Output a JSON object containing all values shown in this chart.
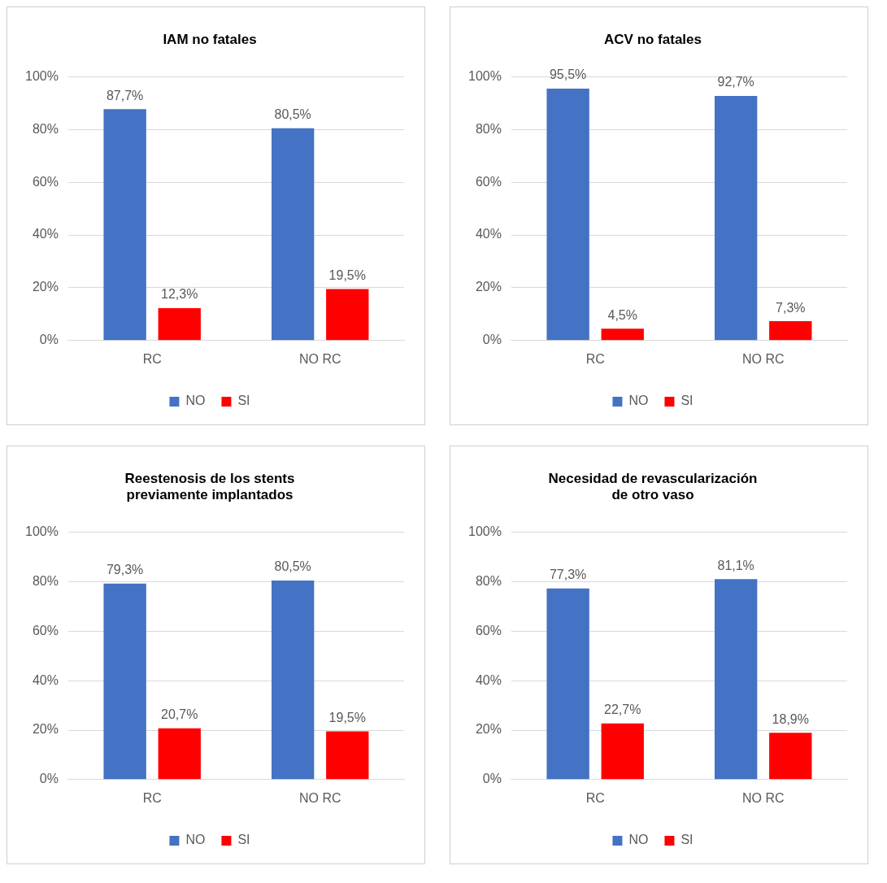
{
  "chart_data": [
    {
      "type": "bar",
      "title": "IAM no fatales",
      "categories": [
        "RC",
        "NO RC"
      ],
      "series": [
        {
          "name": "NO",
          "color": "#4472c4",
          "values": [
            87.7,
            80.5
          ],
          "value_labels": [
            "87,7%",
            "80,5%"
          ]
        },
        {
          "name": "SI",
          "color": "#ff0000",
          "values": [
            12.3,
            19.5
          ],
          "value_labels": [
            "12,3%",
            "19,5%"
          ]
        }
      ],
      "ylim": [
        0,
        100
      ],
      "yticks": [
        {
          "value": 0,
          "label": "0%"
        },
        {
          "value": 20,
          "label": "20%"
        },
        {
          "value": 40,
          "label": "40%"
        },
        {
          "value": 60,
          "label": "60%"
        },
        {
          "value": 80,
          "label": "80%"
        },
        {
          "value": 100,
          "label": "100%"
        }
      ],
      "grid": "y",
      "legend": "bottom"
    },
    {
      "type": "bar",
      "title": "ACV no fatales",
      "categories": [
        "RC",
        "NO RC"
      ],
      "series": [
        {
          "name": "NO",
          "color": "#4472c4",
          "values": [
            95.5,
            92.7
          ],
          "value_labels": [
            "95,5%",
            "92,7%"
          ]
        },
        {
          "name": "SI",
          "color": "#ff0000",
          "values": [
            4.5,
            7.3
          ],
          "value_labels": [
            "4,5%",
            "7,3%"
          ]
        }
      ],
      "ylim": [
        0,
        100
      ],
      "yticks": [
        {
          "value": 0,
          "label": "0%"
        },
        {
          "value": 20,
          "label": "20%"
        },
        {
          "value": 40,
          "label": "40%"
        },
        {
          "value": 60,
          "label": "60%"
        },
        {
          "value": 80,
          "label": "80%"
        },
        {
          "value": 100,
          "label": "100%"
        }
      ],
      "grid": "y",
      "legend": "bottom"
    },
    {
      "type": "bar",
      "title": "Reestenosis de los stents previamente implantados",
      "categories": [
        "RC",
        "NO RC"
      ],
      "series": [
        {
          "name": "NO",
          "color": "#4472c4",
          "values": [
            79.3,
            80.5
          ],
          "value_labels": [
            "79,3%",
            "80,5%"
          ]
        },
        {
          "name": "SI",
          "color": "#ff0000",
          "values": [
            20.7,
            19.5
          ],
          "value_labels": [
            "20,7%",
            "19,5%"
          ]
        }
      ],
      "ylim": [
        0,
        100
      ],
      "yticks": [
        {
          "value": 0,
          "label": "0%"
        },
        {
          "value": 20,
          "label": "20%"
        },
        {
          "value": 40,
          "label": "40%"
        },
        {
          "value": 60,
          "label": "60%"
        },
        {
          "value": 80,
          "label": "80%"
        },
        {
          "value": 100,
          "label": "100%"
        }
      ],
      "grid": "y",
      "legend": "bottom"
    },
    {
      "type": "bar",
      "title": "Necesidad de revascularización de otro vaso",
      "categories": [
        "RC",
        "NO RC"
      ],
      "series": [
        {
          "name": "NO",
          "color": "#4472c4",
          "values": [
            77.3,
            81.1
          ],
          "value_labels": [
            "77,3%",
            "81,1%"
          ]
        },
        {
          "name": "SI",
          "color": "#ff0000",
          "values": [
            22.7,
            18.9
          ],
          "value_labels": [
            "22,7%",
            "18,9%"
          ]
        }
      ],
      "ylim": [
        0,
        100
      ],
      "yticks": [
        {
          "value": 0,
          "label": "0%"
        },
        {
          "value": 20,
          "label": "20%"
        },
        {
          "value": 40,
          "label": "40%"
        },
        {
          "value": 60,
          "label": "60%"
        },
        {
          "value": 80,
          "label": "80%"
        },
        {
          "value": 100,
          "label": "100%"
        }
      ],
      "grid": "y",
      "legend": "bottom"
    }
  ]
}
